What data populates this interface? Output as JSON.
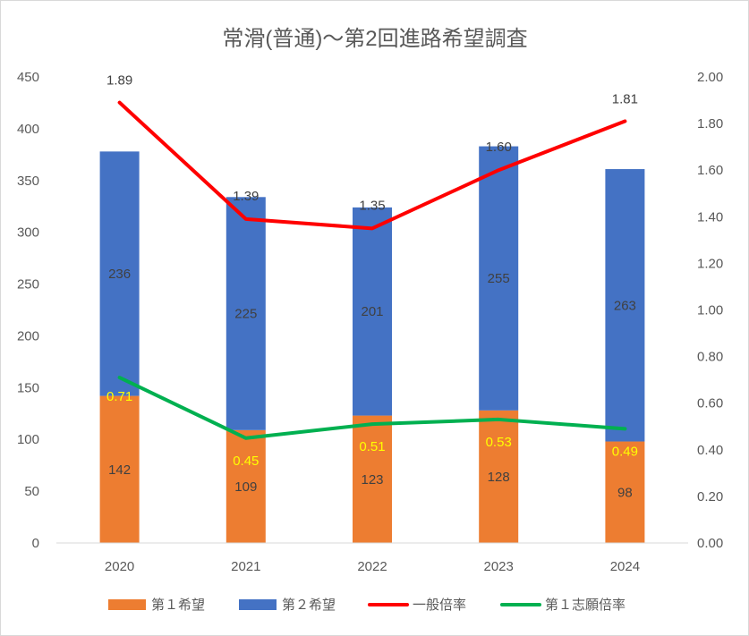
{
  "chart_data": {
    "type": "bar",
    "stacked": true,
    "title": "常滑(普通)〜第2回進路希望調査",
    "categories": [
      "2020",
      "2021",
      "2022",
      "2023",
      "2024"
    ],
    "series": [
      {
        "name": "第１希望",
        "kind": "bar",
        "axis": "left",
        "color": "#ed7d31",
        "values": [
          142,
          109,
          123,
          128,
          98
        ]
      },
      {
        "name": "第２希望",
        "kind": "bar",
        "axis": "left",
        "color": "#4472c4",
        "values": [
          236,
          225,
          201,
          255,
          263
        ]
      },
      {
        "name": "一般倍率",
        "kind": "line",
        "axis": "right",
        "color": "#ff0000",
        "values": [
          1.89,
          1.39,
          1.35,
          1.6,
          1.81
        ],
        "labels": [
          "1.89",
          "1.39",
          "1.35",
          "1.60",
          "1.81"
        ]
      },
      {
        "name": "第１志願倍率",
        "kind": "line",
        "axis": "right",
        "color": "#00b050",
        "values": [
          0.71,
          0.45,
          0.51,
          0.53,
          0.49
        ],
        "labels": [
          "0.71",
          "0.45",
          "0.51",
          "0.53",
          "0.49"
        ]
      }
    ],
    "y_left": {
      "min": 0,
      "max": 450,
      "ticks": [
        "0",
        "50",
        "100",
        "150",
        "200",
        "250",
        "300",
        "350",
        "400",
        "450"
      ]
    },
    "y_right": {
      "min": 0,
      "max": 2.0,
      "ticks": [
        "0.00",
        "0.20",
        "0.40",
        "0.60",
        "0.80",
        "1.00",
        "1.20",
        "1.40",
        "1.60",
        "1.80",
        "2.00"
      ]
    },
    "grid": false,
    "legend": "bottom"
  }
}
